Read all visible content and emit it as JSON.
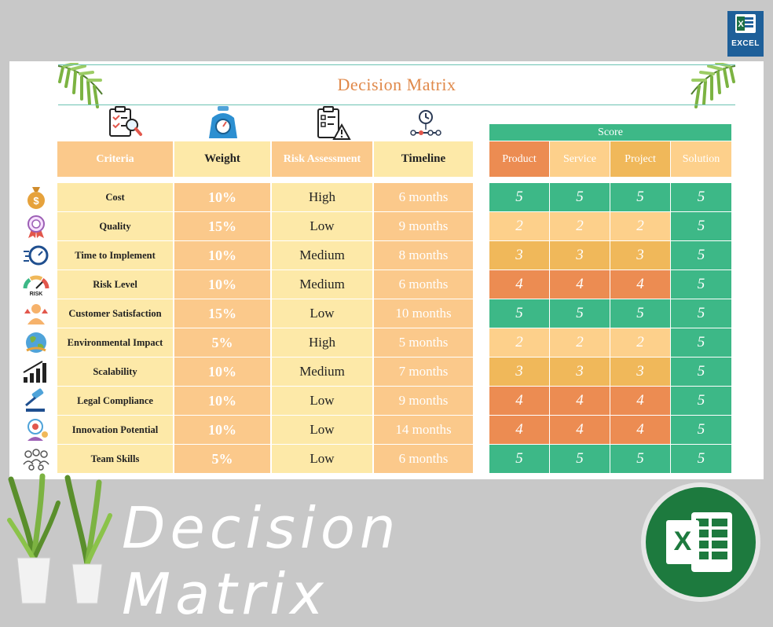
{
  "badge": {
    "label": "EXCEL",
    "icon": "excel-icon"
  },
  "sheet": {
    "title": "Decision Matrix"
  },
  "headers": {
    "criteria": "Criteria",
    "weight": "Weight",
    "risk": "Risk Assessment",
    "timeline": "Timeline",
    "score": "Score",
    "score_cols": [
      "Product",
      "Service",
      "Project",
      "Solution"
    ]
  },
  "rows": [
    {
      "criteria": "Cost",
      "weight": "10%",
      "risk": "High",
      "timeline": "6 months",
      "scores": [
        "5",
        "5",
        "5",
        "5"
      ],
      "icon": "money-bag-icon"
    },
    {
      "criteria": "Quality",
      "weight": "15%",
      "risk": "Low",
      "timeline": "9 months",
      "scores": [
        "2",
        "2",
        "2",
        "5"
      ],
      "icon": "quality-badge-icon"
    },
    {
      "criteria": "Time to Implement",
      "weight": "10%",
      "risk": "Medium",
      "timeline": "8 months",
      "scores": [
        "3",
        "3",
        "3",
        "5"
      ],
      "icon": "stopwatch-icon"
    },
    {
      "criteria": "Risk Level",
      "weight": "10%",
      "risk": "Medium",
      "timeline": "6 months",
      "scores": [
        "4",
        "4",
        "4",
        "5"
      ],
      "icon": "risk-gauge-icon"
    },
    {
      "criteria": "Customer Satisfaction",
      "weight": "15%",
      "risk": "Low",
      "timeline": "10 months",
      "scores": [
        "5",
        "5",
        "5",
        "5"
      ],
      "icon": "satisfaction-icon"
    },
    {
      "criteria": "Environmental Impact",
      "weight": "5%",
      "risk": "High",
      "timeline": "5 months",
      "scores": [
        "2",
        "2",
        "2",
        "5"
      ],
      "icon": "earth-icon"
    },
    {
      "criteria": "Scalability",
      "weight": "10%",
      "risk": "Medium",
      "timeline": "7 months",
      "scores": [
        "3",
        "3",
        "3",
        "5"
      ],
      "icon": "bar-growth-icon"
    },
    {
      "criteria": "Legal Compliance",
      "weight": "10%",
      "risk": "Low",
      "timeline": "9 months",
      "scores": [
        "4",
        "4",
        "4",
        "5"
      ],
      "icon": "gavel-icon"
    },
    {
      "criteria": "Innovation Potential",
      "weight": "10%",
      "risk": "Low",
      "timeline": "14 months",
      "scores": [
        "4",
        "4",
        "4",
        "5"
      ],
      "icon": "innovation-icon"
    },
    {
      "criteria": "Team Skills",
      "weight": "5%",
      "risk": "Low",
      "timeline": "6 months",
      "scores": [
        "5",
        "5",
        "5",
        "5"
      ],
      "icon": "team-icon"
    }
  ],
  "score_colors": {
    "5": "#3db887",
    "2": "#fdd08b",
    "3": "#f0b85a",
    "4": "#ec8c52"
  },
  "banner": {
    "title": "Decision Matrix"
  }
}
